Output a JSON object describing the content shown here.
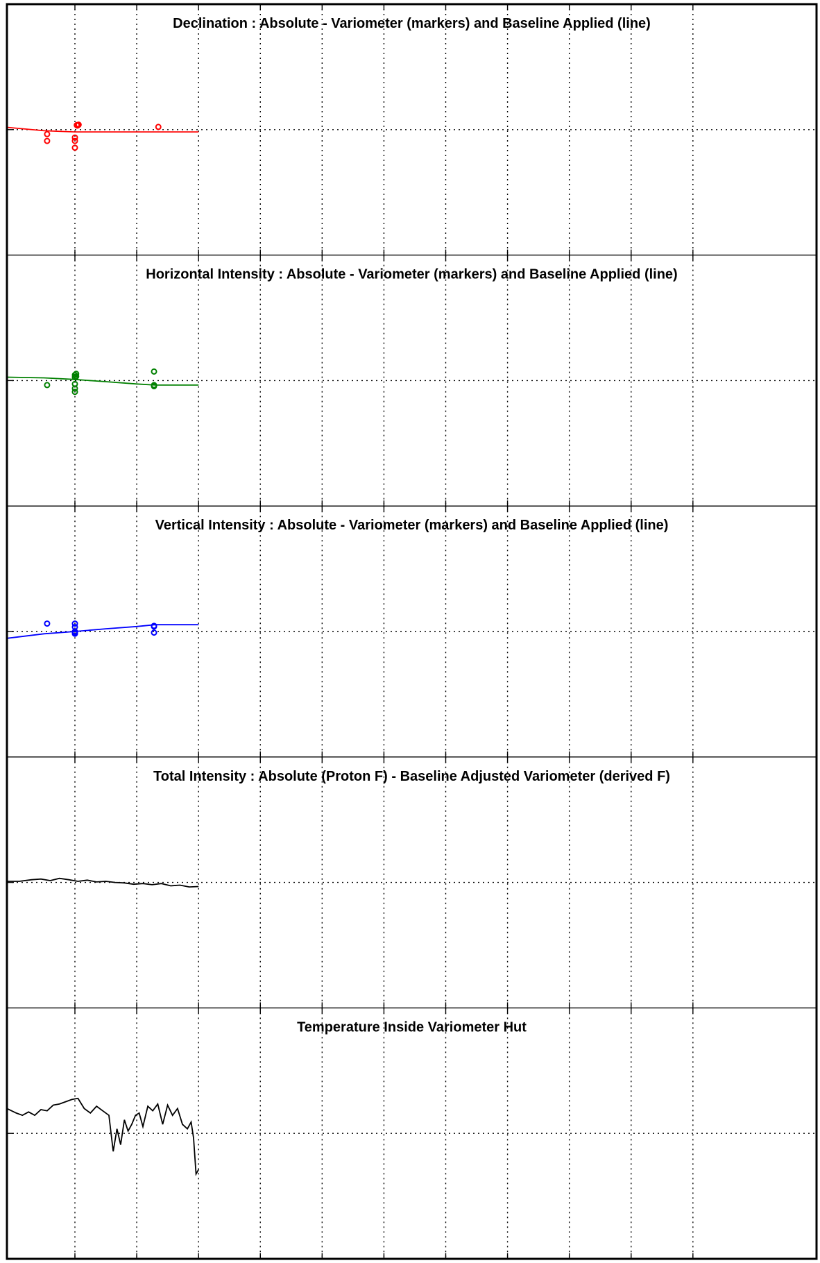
{
  "chart_data": [
    {
      "type": "scatter",
      "title": "Declination : Absolute - Variometer (markers) and Baseline Applied (line)",
      "color": "#ff0000",
      "grid": true,
      "x_grid_count": 12,
      "ylim": [
        -5,
        5
      ],
      "marker_x": [
        0.55,
        0.55,
        1.0,
        1.0,
        1.0,
        1.03,
        1.04,
        1.04,
        1.06,
        1.05,
        2.35
      ],
      "marker_y": [
        -0.2,
        -0.5,
        -0.5,
        -0.8,
        -0.35,
        0.2,
        0.2,
        0.18,
        0.22,
        0.2,
        0.12
      ],
      "baseline_x": [
        -0.1,
        0.5,
        1.0,
        1.5,
        2.0,
        2.5,
        3.0
      ],
      "baseline_y": [
        0.1,
        -0.05,
        -0.1,
        -0.1,
        -0.1,
        -0.1,
        -0.1
      ]
    },
    {
      "type": "scatter",
      "title": "Horizontal Intensity : Absolute - Variometer (markers) and Baseline Applied (line)",
      "color": "#008000",
      "grid": true,
      "x_grid_count": 12,
      "ylim": [
        -5,
        5
      ],
      "marker_x": [
        0.55,
        1.0,
        1.0,
        1.0,
        1.0,
        1.0,
        1.02,
        1.02,
        2.28,
        2.28,
        2.28
      ],
      "marker_y": [
        -0.2,
        0.15,
        0.25,
        -0.15,
        -0.5,
        -0.35,
        0.3,
        0.18,
        0.4,
        -0.25,
        -0.2
      ],
      "baseline_x": [
        -0.1,
        0.5,
        1.0,
        1.5,
        2.0,
        2.3,
        3.0
      ],
      "baseline_y": [
        0.15,
        0.12,
        0.05,
        -0.05,
        -0.15,
        -0.2,
        -0.2
      ]
    },
    {
      "type": "scatter",
      "title": "Vertical Intensity : Absolute - Variometer (markers) and Baseline Applied (line)",
      "color": "#0000ff",
      "grid": true,
      "x_grid_count": 12,
      "ylim": [
        -5,
        5
      ],
      "marker_x": [
        0.55,
        1.0,
        1.0,
        1.0,
        1.0,
        1.0,
        2.28,
        2.28,
        2.28
      ],
      "marker_y": [
        0.35,
        0.35,
        0.2,
        0.0,
        -0.05,
        -0.1,
        0.25,
        0.22,
        -0.05
      ],
      "baseline_x": [
        -0.1,
        0.5,
        1.0,
        1.5,
        2.0,
        2.3,
        3.0
      ],
      "baseline_y": [
        -0.3,
        -0.1,
        0.0,
        0.12,
        0.22,
        0.3,
        0.3
      ]
    },
    {
      "type": "line",
      "title": "Total Intensity : Absolute (Proton F) - Baseline Adjusted Variometer (derived F)",
      "color": "#000000",
      "grid": true,
      "x_grid_count": 12,
      "ylim": [
        -5,
        5
      ],
      "x": [
        -0.1,
        0.1,
        0.3,
        0.45,
        0.6,
        0.75,
        0.9,
        1.05,
        1.2,
        1.35,
        1.5,
        1.65,
        1.8,
        1.95,
        2.1,
        2.25,
        2.4,
        2.55,
        2.7,
        2.85,
        3.0
      ],
      "y": [
        0.05,
        0.05,
        0.12,
        0.15,
        0.08,
        0.18,
        0.12,
        0.05,
        0.1,
        0.02,
        0.05,
        0.0,
        -0.02,
        -0.08,
        -0.05,
        -0.1,
        -0.05,
        -0.15,
        -0.12,
        -0.2,
        -0.18
      ]
    },
    {
      "type": "line",
      "title": "Temperature Inside Variometer Hut",
      "color": "#000000",
      "grid": true,
      "x_grid_count": 12,
      "ylim": [
        -5,
        5
      ],
      "x": [
        -0.1,
        0.05,
        0.15,
        0.25,
        0.35,
        0.45,
        0.55,
        0.65,
        0.75,
        0.85,
        0.95,
        1.05,
        1.15,
        1.25,
        1.35,
        1.45,
        1.55,
        1.62,
        1.68,
        1.74,
        1.8,
        1.86,
        1.92,
        1.98,
        2.04,
        2.1,
        2.18,
        2.26,
        2.34,
        2.42,
        2.5,
        2.58,
        2.66,
        2.74,
        2.82,
        2.88,
        2.92,
        2.96,
        3.0
      ],
      "y": [
        1.1,
        0.9,
        0.8,
        0.95,
        0.8,
        1.05,
        1.0,
        1.25,
        1.3,
        1.4,
        1.5,
        1.55,
        1.1,
        0.9,
        1.2,
        1.0,
        0.8,
        -0.8,
        0.2,
        -0.5,
        0.6,
        0.1,
        0.4,
        0.8,
        0.9,
        0.3,
        1.2,
        1.0,
        1.3,
        0.4,
        1.25,
        0.8,
        1.1,
        0.4,
        0.2,
        0.5,
        -0.2,
        -1.8,
        -1.6
      ]
    }
  ]
}
